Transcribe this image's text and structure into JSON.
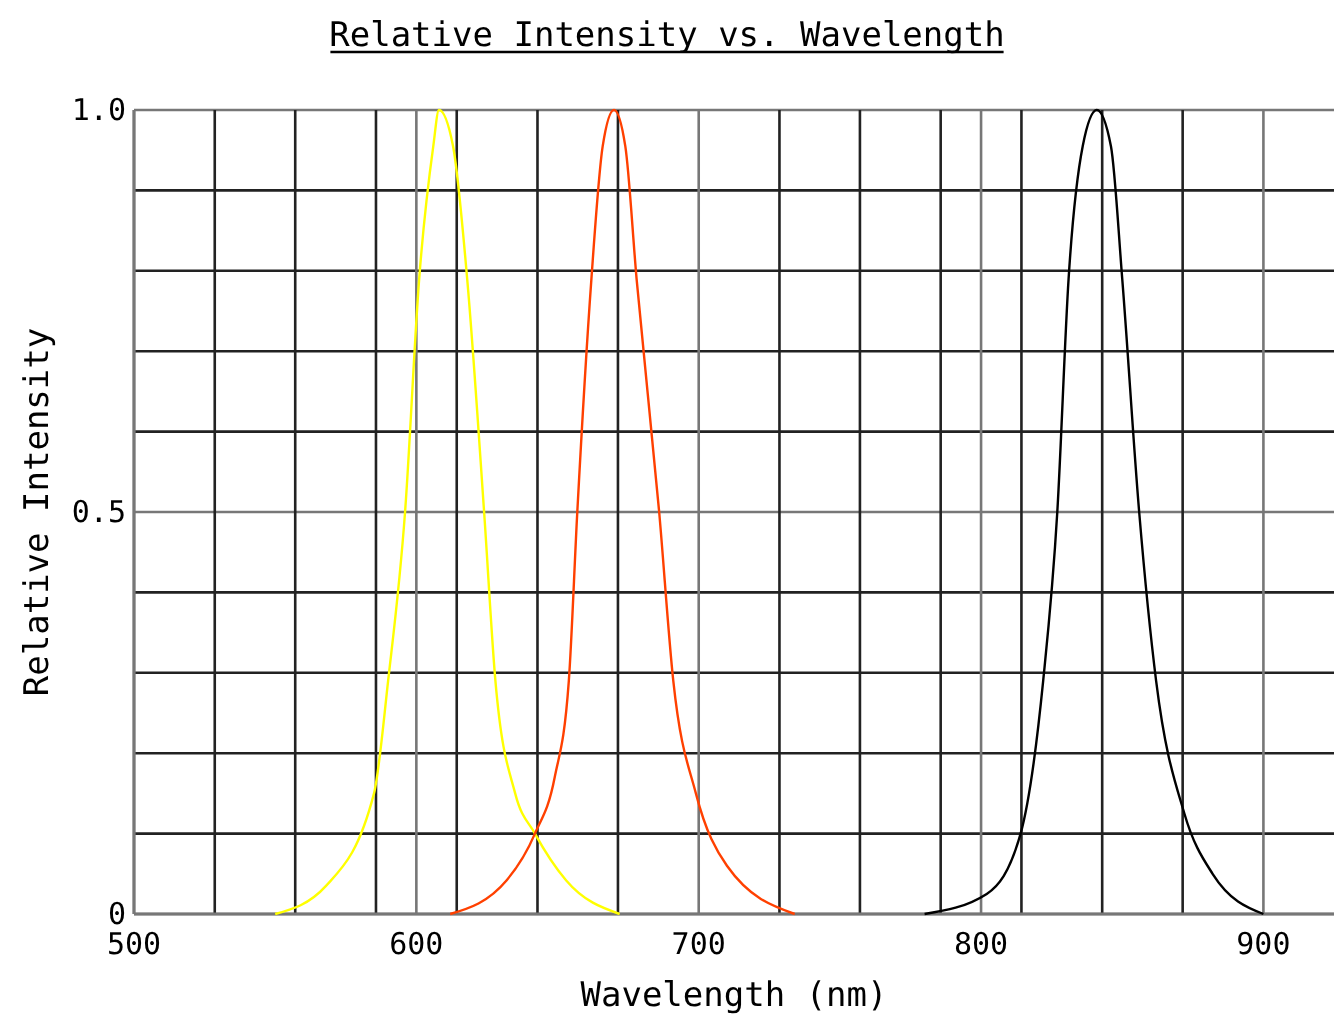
{
  "chart_data": {
    "type": "line",
    "title": "Relative Intensity vs. Wavelength",
    "xlabel": "Wavelength (nm)",
    "ylabel": "Relative Intensity",
    "xlim": [
      500,
      925
    ],
    "xticks": [
      500,
      {
        "value": 528.6,
        "label": null
      },
      {
        "value": 557.1,
        "label": null
      },
      {
        "value": 585.7,
        "label": null
      },
      600,
      {
        "value": 614.3,
        "label": null
      },
      {
        "value": 642.9,
        "label": null
      },
      {
        "value": 671.4,
        "label": null
      },
      700,
      {
        "value": 728.6,
        "label": null
      },
      {
        "value": 757.1,
        "label": null
      },
      {
        "value": 785.7,
        "label": null
      },
      800,
      {
        "value": 814.3,
        "label": null
      },
      {
        "value": 842.9,
        "label": null
      },
      {
        "value": 871.4,
        "label": null
      },
      900
    ],
    "ylim": [
      0,
      1.0
    ],
    "yticks": [
      0,
      {
        "value": 0.1,
        "label": null
      },
      {
        "value": 0.2,
        "label": null
      },
      {
        "value": 0.3,
        "label": null
      },
      {
        "value": 0.4,
        "label": null
      },
      0.5,
      {
        "value": 0.6,
        "label": null
      },
      {
        "value": 0.7,
        "label": null
      },
      {
        "value": 0.8,
        "label": null
      },
      {
        "value": 0.9,
        "label": null
      },
      {
        "value": 1.0,
        "label": "1.0"
      }
    ],
    "grid": true,
    "marker": "none",
    "line_style": "solid",
    "series": [
      {
        "color": "#ffff00",
        "x": [
          550,
          568,
          585,
          590,
          596,
          601,
          606,
          608,
          613,
          618,
          624,
          628,
          635,
          642,
          653,
          672
        ],
        "values": [
          0,
          0.035,
          0.15,
          0.29,
          0.5,
          0.79,
          0.955,
          1.0,
          0.955,
          0.79,
          0.5,
          0.29,
          0.15,
          0.1,
          0.042,
          0
        ]
      },
      {
        "color": "#ff4000",
        "x": [
          612,
          632,
          642,
          649,
          654,
          657,
          662,
          666,
          670,
          674,
          678,
          686,
          691,
          699,
          710,
          734
        ],
        "values": [
          0,
          0.042,
          0.1,
          0.17,
          0.29,
          0.5,
          0.79,
          0.955,
          1.0,
          0.955,
          0.79,
          0.5,
          0.29,
          0.15,
          0.06,
          0
        ]
      },
      {
        "color": "#000000",
        "x": [
          780,
          802,
          814,
          822,
          827,
          831,
          836,
          841,
          846,
          850,
          856,
          862,
          872,
          882,
          900
        ],
        "values": [
          0,
          0.025,
          0.1,
          0.29,
          0.5,
          0.79,
          0.955,
          1.0,
          0.955,
          0.79,
          0.5,
          0.29,
          0.125,
          0.05,
          0
        ]
      }
    ]
  }
}
